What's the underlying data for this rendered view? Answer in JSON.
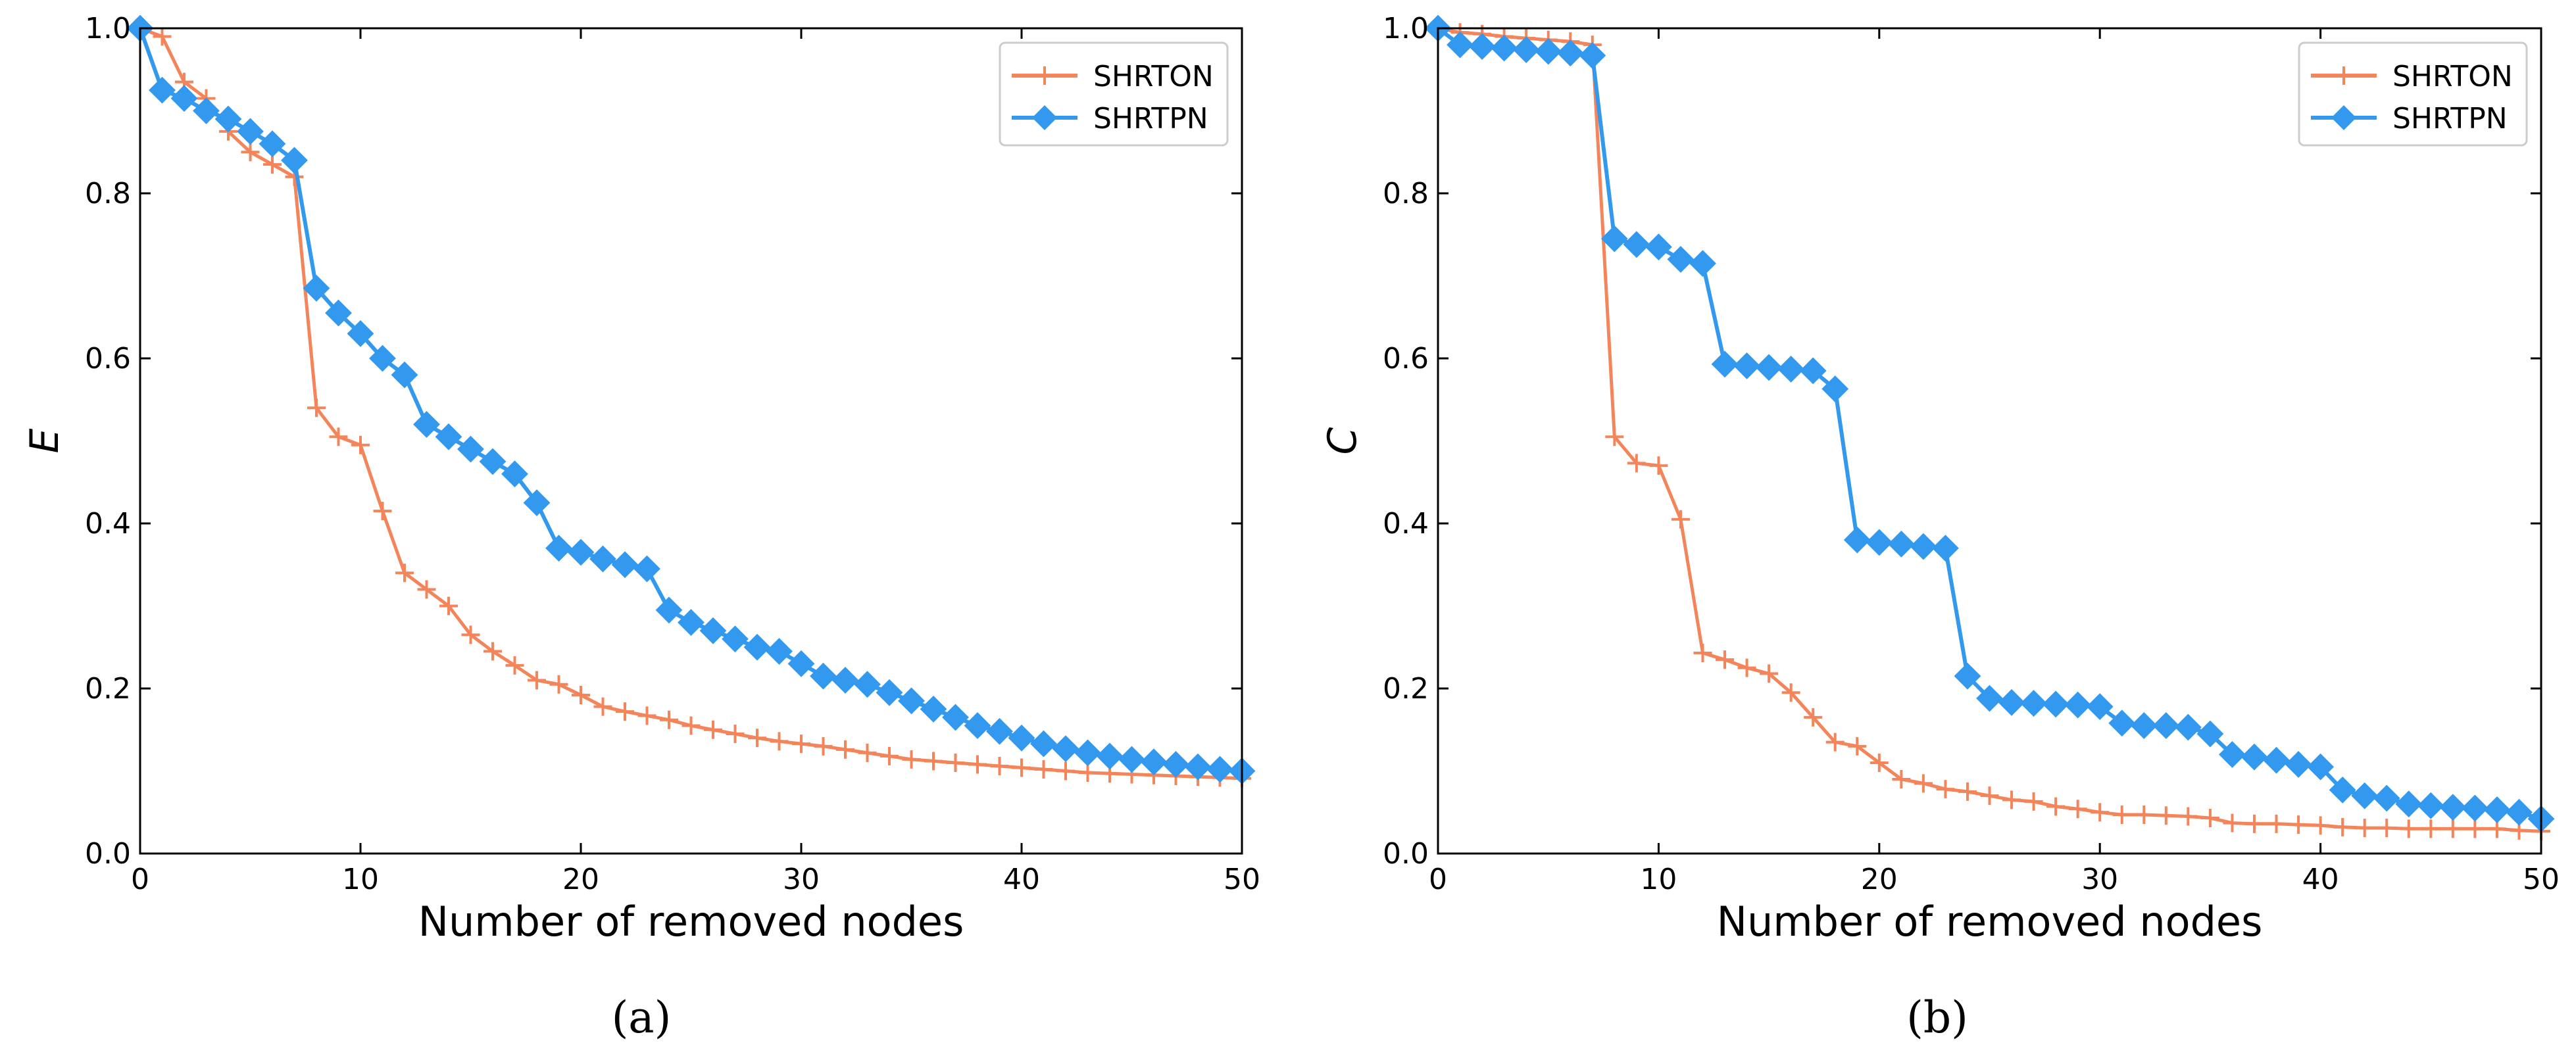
{
  "colors": {
    "shrton": "#f4845a",
    "shrtpn": "#3399ee",
    "axis": "#000000",
    "legend_border": "#cccccc"
  },
  "chart_data": [
    {
      "type": "line",
      "caption": "(a)",
      "xlabel": "Number of removed nodes",
      "ylabel": "E",
      "xlim": [
        0,
        50
      ],
      "ylim": [
        0,
        1.0
      ],
      "xticks": [
        0,
        10,
        20,
        30,
        40,
        50
      ],
      "yticks": [
        0.0,
        0.2,
        0.4,
        0.6,
        0.8,
        1.0
      ],
      "xtick_labels": [
        "0",
        "10",
        "20",
        "30",
        "40",
        "50"
      ],
      "ytick_labels": [
        "0.0",
        "0.2",
        "0.4",
        "0.6",
        "0.8",
        "1.0"
      ],
      "grid": false,
      "legend_position": "top-right",
      "x": [
        0,
        1,
        2,
        3,
        4,
        5,
        6,
        7,
        8,
        9,
        10,
        11,
        12,
        13,
        14,
        15,
        16,
        17,
        18,
        19,
        20,
        21,
        22,
        23,
        24,
        25,
        26,
        27,
        28,
        29,
        30,
        31,
        32,
        33,
        34,
        35,
        36,
        37,
        38,
        39,
        40,
        41,
        42,
        43,
        44,
        45,
        46,
        47,
        48,
        49,
        50
      ],
      "series": [
        {
          "name": "SHRTON",
          "marker": "plus",
          "values": [
            1.0,
            0.99,
            0.935,
            0.915,
            0.875,
            0.85,
            0.835,
            0.82,
            0.54,
            0.505,
            0.495,
            0.415,
            0.34,
            0.32,
            0.3,
            0.265,
            0.245,
            0.228,
            0.21,
            0.205,
            0.192,
            0.178,
            0.172,
            0.167,
            0.162,
            0.155,
            0.15,
            0.145,
            0.14,
            0.136,
            0.133,
            0.13,
            0.126,
            0.122,
            0.118,
            0.114,
            0.112,
            0.11,
            0.108,
            0.106,
            0.104,
            0.102,
            0.1,
            0.098,
            0.097,
            0.096,
            0.095,
            0.094,
            0.093,
            0.092,
            0.091
          ]
        },
        {
          "name": "SHRTPN",
          "marker": "diamond",
          "values": [
            1.0,
            0.925,
            0.915,
            0.9,
            0.89,
            0.875,
            0.86,
            0.84,
            0.685,
            0.655,
            0.63,
            0.6,
            0.58,
            0.52,
            0.505,
            0.49,
            0.475,
            0.46,
            0.425,
            0.37,
            0.365,
            0.357,
            0.35,
            0.345,
            0.295,
            0.28,
            0.27,
            0.26,
            0.25,
            0.245,
            0.23,
            0.215,
            0.21,
            0.205,
            0.195,
            0.185,
            0.175,
            0.165,
            0.155,
            0.148,
            0.14,
            0.133,
            0.127,
            0.122,
            0.118,
            0.114,
            0.111,
            0.108,
            0.105,
            0.102,
            0.1
          ]
        }
      ]
    },
    {
      "type": "line",
      "caption": "(b)",
      "xlabel": "Number of removed nodes",
      "ylabel": "C",
      "xlim": [
        0,
        50
      ],
      "ylim": [
        0,
        1.0
      ],
      "xticks": [
        0,
        10,
        20,
        30,
        40,
        50
      ],
      "yticks": [
        0.0,
        0.2,
        0.4,
        0.6,
        0.8,
        1.0
      ],
      "xtick_labels": [
        "0",
        "10",
        "20",
        "30",
        "40",
        "50"
      ],
      "ytick_labels": [
        "0.0",
        "0.2",
        "0.4",
        "0.6",
        "0.8",
        "1.0"
      ],
      "grid": false,
      "legend_position": "top-right",
      "x": [
        0,
        1,
        2,
        3,
        4,
        5,
        6,
        7,
        8,
        9,
        10,
        11,
        12,
        13,
        14,
        15,
        16,
        17,
        18,
        19,
        20,
        21,
        22,
        23,
        24,
        25,
        26,
        27,
        28,
        29,
        30,
        31,
        32,
        33,
        34,
        35,
        36,
        37,
        38,
        39,
        40,
        41,
        42,
        43,
        44,
        45,
        46,
        47,
        48,
        49,
        50
      ],
      "series": [
        {
          "name": "SHRTON",
          "marker": "plus",
          "values": [
            1.0,
            0.995,
            0.993,
            0.99,
            0.988,
            0.986,
            0.984,
            0.98,
            0.505,
            0.473,
            0.47,
            0.405,
            0.243,
            0.235,
            0.225,
            0.218,
            0.195,
            0.165,
            0.135,
            0.13,
            0.11,
            0.09,
            0.085,
            0.078,
            0.075,
            0.07,
            0.065,
            0.063,
            0.057,
            0.054,
            0.05,
            0.047,
            0.047,
            0.046,
            0.045,
            0.043,
            0.037,
            0.036,
            0.036,
            0.035,
            0.034,
            0.032,
            0.031,
            0.031,
            0.03,
            0.03,
            0.03,
            0.03,
            0.03,
            0.028,
            0.027
          ]
        },
        {
          "name": "SHRTPN",
          "marker": "diamond",
          "values": [
            1.0,
            0.98,
            0.978,
            0.976,
            0.974,
            0.972,
            0.97,
            0.967,
            0.745,
            0.738,
            0.735,
            0.72,
            0.715,
            0.593,
            0.591,
            0.589,
            0.587,
            0.585,
            0.563,
            0.38,
            0.377,
            0.375,
            0.372,
            0.37,
            0.215,
            0.188,
            0.183,
            0.182,
            0.181,
            0.18,
            0.178,
            0.158,
            0.155,
            0.155,
            0.153,
            0.145,
            0.12,
            0.117,
            0.113,
            0.108,
            0.105,
            0.077,
            0.07,
            0.067,
            0.06,
            0.058,
            0.056,
            0.055,
            0.053,
            0.05,
            0.042
          ]
        }
      ]
    }
  ]
}
